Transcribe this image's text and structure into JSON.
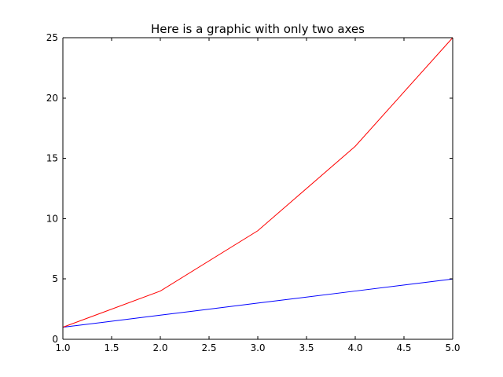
{
  "chart_data": {
    "type": "line",
    "title": "Here is a graphic with only two axes",
    "xlabel": "",
    "ylabel": "",
    "xlim": [
      1.0,
      5.0
    ],
    "ylim": [
      0,
      25
    ],
    "x_ticks": [
      1.0,
      1.5,
      2.0,
      2.5,
      3.0,
      3.5,
      4.0,
      4.5,
      5.0
    ],
    "x_tick_labels": [
      "1.0",
      "1.5",
      "2.0",
      "2.5",
      "3.0",
      "3.5",
      "4.0",
      "4.5",
      "5.0"
    ],
    "y_ticks": [
      0,
      5,
      10,
      15,
      20,
      25
    ],
    "y_tick_labels": [
      "0",
      "5",
      "10",
      "15",
      "20",
      "25"
    ],
    "grid": false,
    "visible_spines": [
      "left",
      "top",
      "right",
      "bottom"
    ],
    "series": [
      {
        "x": [
          1,
          2,
          3,
          4,
          5
        ],
        "values": [
          1,
          2,
          3,
          4,
          5
        ],
        "color": "#0000ff"
      },
      {
        "x": [
          1,
          2,
          3,
          4,
          5
        ],
        "values": [
          1,
          4,
          9,
          16,
          25
        ],
        "color": "#ff0000"
      }
    ]
  }
}
